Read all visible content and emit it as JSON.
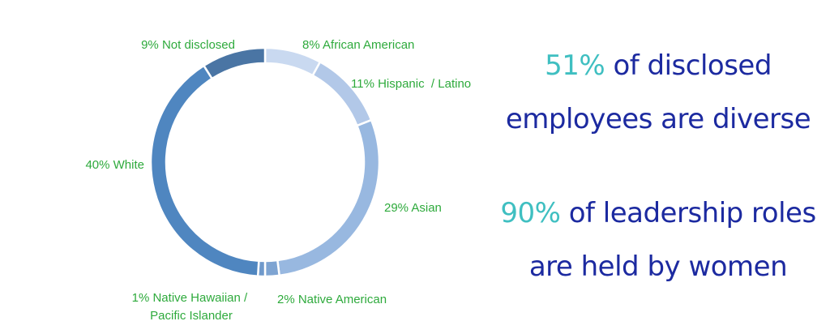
{
  "colors": {
    "label_text": "#2eaa3c",
    "highlight": "#3fbfc1",
    "headline": "#1c2aa0",
    "separator": "#ffffff"
  },
  "chart_data": {
    "type": "pie",
    "donut": true,
    "slices": [
      {
        "label": "8% African American",
        "value": 8,
        "color": "#c9d9f0"
      },
      {
        "label": "11% Hispanic  / Latino",
        "value": 11,
        "color": "#b2c8e8"
      },
      {
        "label": "29% Asian",
        "value": 29,
        "color": "#98b8e0"
      },
      {
        "label": "2% Native American",
        "value": 2,
        "color": "#7ea4d2"
      },
      {
        "label": "1% Native Hawaiian / Pacific Islander",
        "value": 1,
        "color": "#6f99cb"
      },
      {
        "label": "40% White",
        "value": 40,
        "color": "#4f86c0"
      },
      {
        "label": "9% Not disclosed",
        "value": 9,
        "color": "#4a75a4"
      }
    ]
  },
  "stats": [
    {
      "highlight": "51%",
      "line1_rest": " of disclosed",
      "line2": "employees are diverse"
    },
    {
      "highlight": "90%",
      "line1_rest": " of leadership roles",
      "line2": "are held by women"
    }
  ]
}
